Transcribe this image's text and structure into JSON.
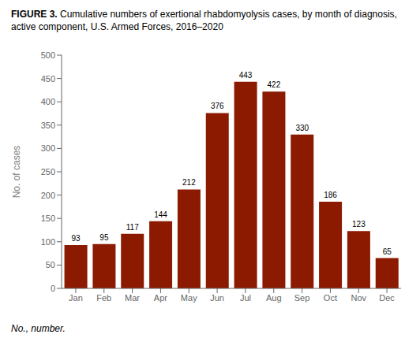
{
  "chart_data": {
    "type": "bar",
    "title": "FIGURE 3.",
    "subtitle": "Cumulative numbers of exertional rhabdomyolysis cases, by month of diagnosis, active component, U.S. Armed Forces, 2016–2020",
    "categories": [
      "Jan",
      "Feb",
      "Mar",
      "Apr",
      "May",
      "Jun",
      "Jul",
      "Aug",
      "Sep",
      "Oct",
      "Nov",
      "Dec"
    ],
    "values": [
      93,
      95,
      117,
      144,
      212,
      376,
      443,
      422,
      330,
      186,
      123,
      65
    ],
    "color": "#8B1A00",
    "ylabel": "No. of cases",
    "ylim": [
      0,
      500
    ],
    "yticks": [
      0,
      50,
      100,
      150,
      200,
      250,
      300,
      350,
      400,
      450,
      500
    ],
    "grid": false,
    "data_labels": true,
    "annotations": [
      "No., number."
    ]
  }
}
